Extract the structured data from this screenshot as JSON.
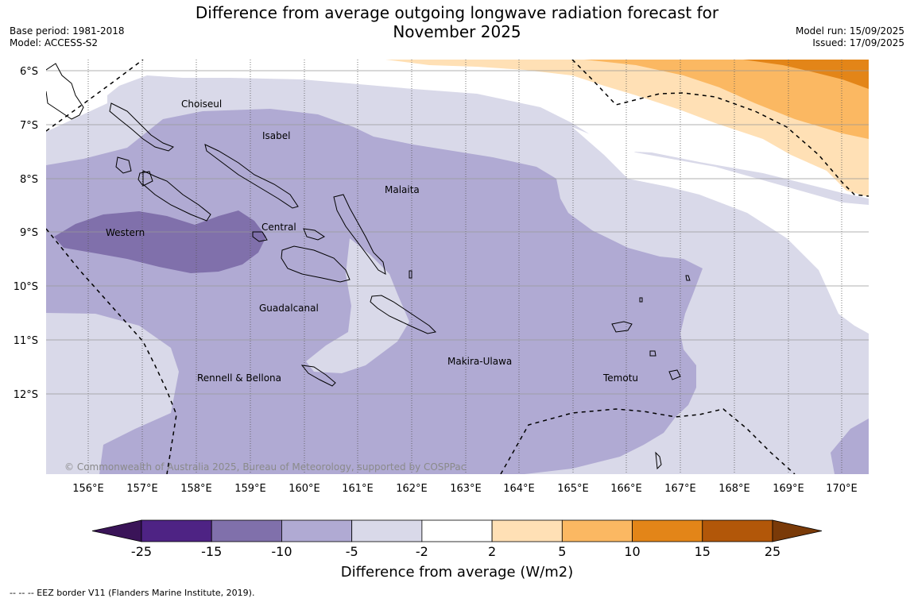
{
  "title_line1": "Difference from average outgoing longwave radiation forecast for",
  "title_line2": "November 2025",
  "meta_left": [
    "Base period: 1981-2018",
    "Model: ACCESS-S2"
  ],
  "meta_right": [
    "Model run: 15/09/2025",
    "Issued: 17/09/2025"
  ],
  "lat_labels": [
    "6°S",
    "7°S",
    "8°S",
    "9°S",
    "10°S",
    "11°S",
    "12°S"
  ],
  "lon_labels": [
    "156°E",
    "157°E",
    "158°E",
    "159°E",
    "160°E",
    "161°E",
    "162°E",
    "163°E",
    "164°E",
    "165°E",
    "166°E",
    "167°E",
    "168°E",
    "169°E",
    "170°E"
  ],
  "places": [
    "Choiseul",
    "Isabel",
    "Malaita",
    "Western",
    "Central",
    "Guadalcanal",
    "Rennell & Bellona",
    "Makira-Ulawa",
    "Temotu"
  ],
  "copyright": "© Commonwealth of Australia 2025, Bureau of Meteorology, supported by COSPPac",
  "colorbar": {
    "ticks": [
      "-25",
      "-15",
      "-10",
      "-5",
      "-2",
      "2",
      "5",
      "10",
      "15",
      "25"
    ],
    "label": "Difference from average (W/m2)",
    "colors": [
      "#3a1458",
      "#4e2384",
      "#8070ab",
      "#b0aad3",
      "#d9d9e9",
      "#ffffff",
      "#ffe0b5",
      "#fbb862",
      "#e38518",
      "#b25709",
      "#7a3a08"
    ]
  },
  "footnote": "--  --  -- EEZ border V11 (Flanders Marine Institute, 2019)."
}
